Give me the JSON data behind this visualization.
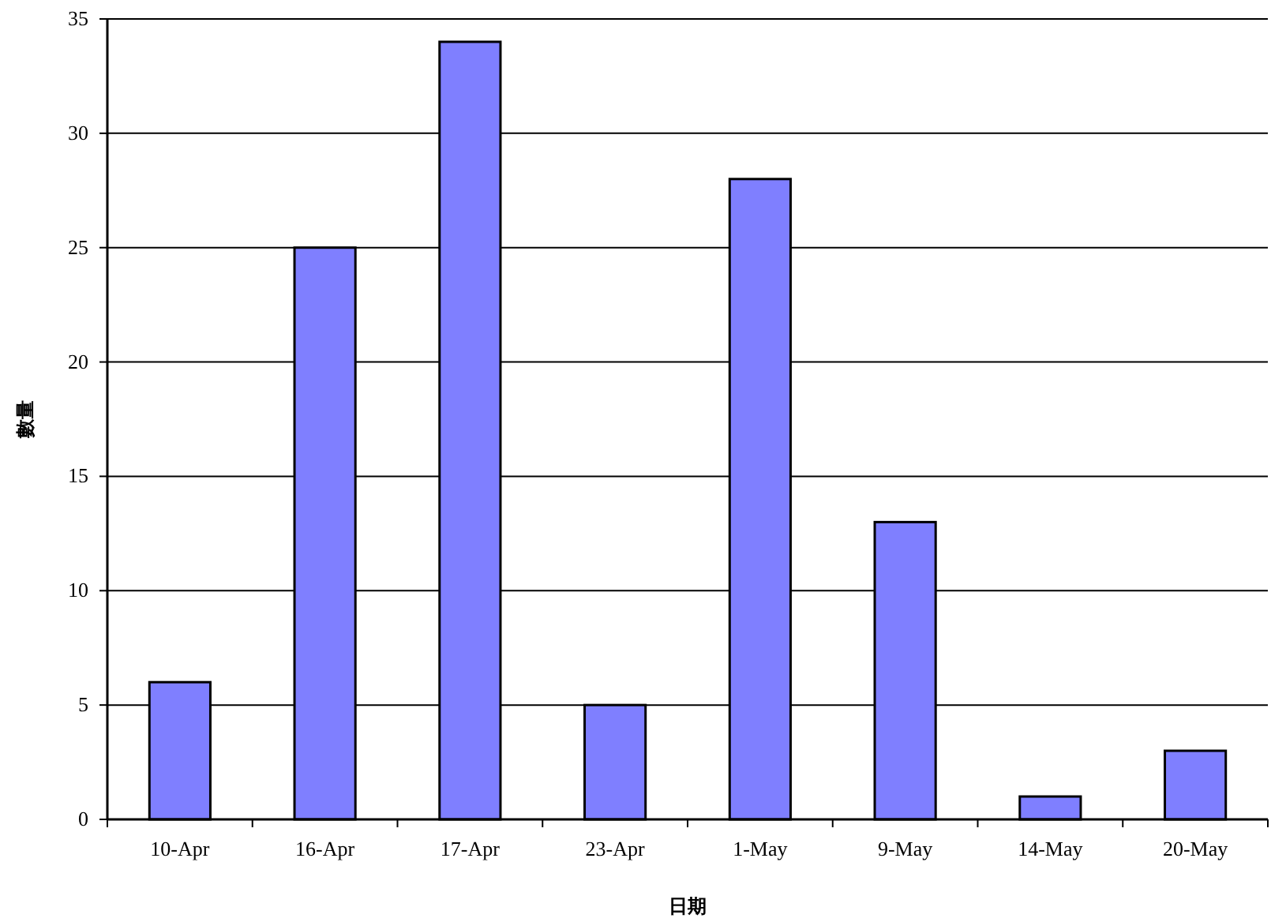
{
  "chart_data": {
    "type": "bar",
    "xlabel": "日期",
    "ylabel": "數量",
    "categories": [
      "10-Apr",
      "16-Apr",
      "17-Apr",
      "23-Apr",
      "1-May",
      "9-May",
      "14-May",
      "20-May"
    ],
    "values": [
      6,
      25,
      34,
      5,
      28,
      13,
      1,
      3
    ],
    "color": "#7f7fff",
    "ylim": [
      0,
      35
    ],
    "yticks": [
      0,
      5,
      10,
      15,
      20,
      25,
      30,
      35
    ],
    "grid": "y"
  }
}
